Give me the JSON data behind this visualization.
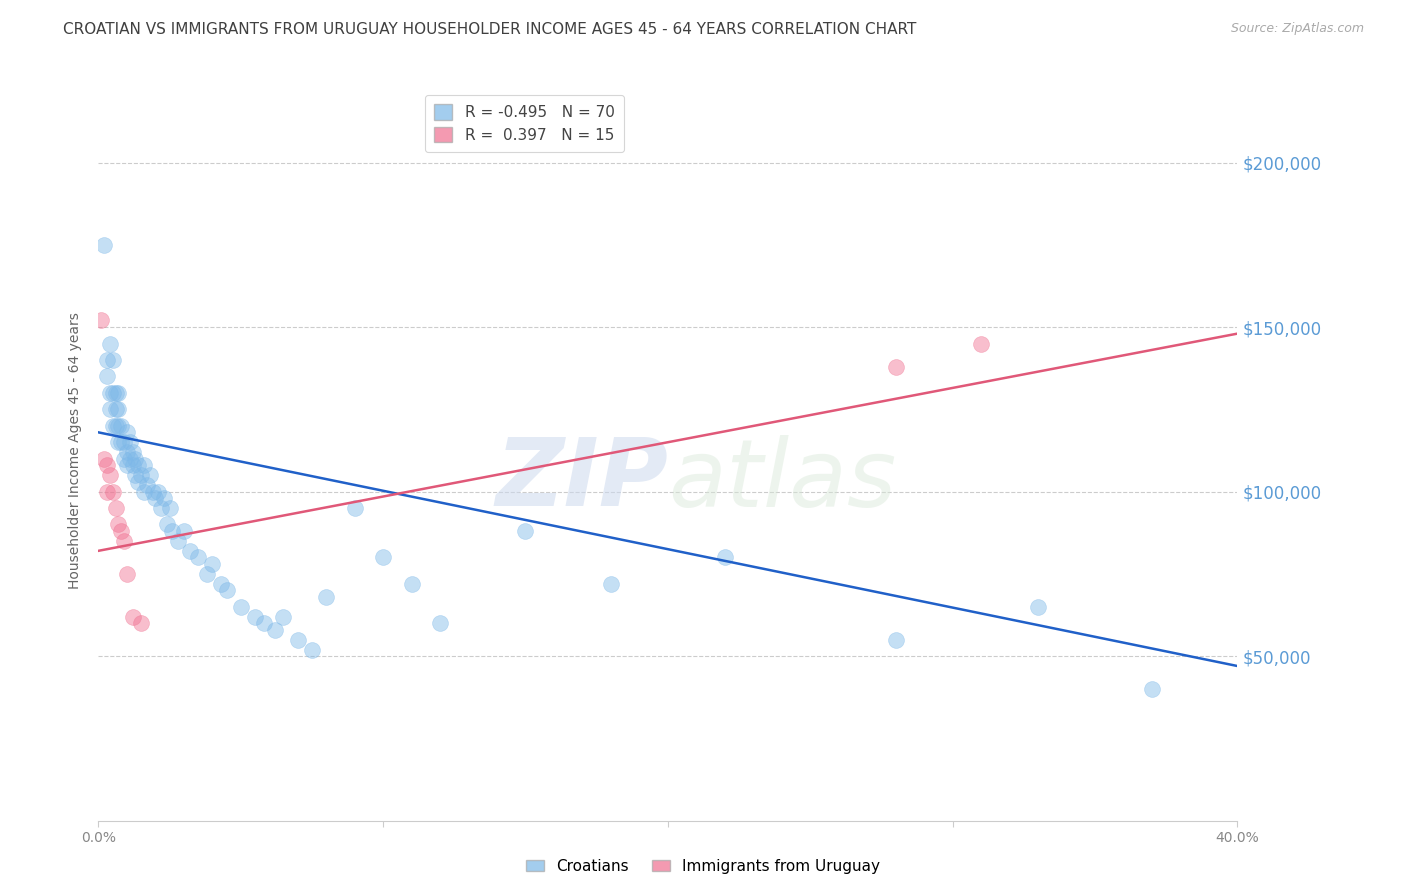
{
  "title": "CROATIAN VS IMMIGRANTS FROM URUGUAY HOUSEHOLDER INCOME AGES 45 - 64 YEARS CORRELATION CHART",
  "source": "Source: ZipAtlas.com",
  "ylabel": "Householder Income Ages 45 - 64 years",
  "ytick_labels": [
    "$50,000",
    "$100,000",
    "$150,000",
    "$200,000"
  ],
  "ytick_values": [
    50000,
    100000,
    150000,
    200000
  ],
  "watermark": "ZIPatlas",
  "croatians_x": [
    0.002,
    0.003,
    0.003,
    0.004,
    0.004,
    0.004,
    0.005,
    0.005,
    0.005,
    0.006,
    0.006,
    0.006,
    0.007,
    0.007,
    0.007,
    0.007,
    0.008,
    0.008,
    0.009,
    0.009,
    0.01,
    0.01,
    0.01,
    0.011,
    0.011,
    0.012,
    0.012,
    0.013,
    0.013,
    0.014,
    0.014,
    0.015,
    0.016,
    0.016,
    0.017,
    0.018,
    0.019,
    0.02,
    0.021,
    0.022,
    0.023,
    0.024,
    0.025,
    0.026,
    0.028,
    0.03,
    0.032,
    0.035,
    0.038,
    0.04,
    0.043,
    0.045,
    0.05,
    0.055,
    0.058,
    0.062,
    0.065,
    0.07,
    0.075,
    0.08,
    0.09,
    0.1,
    0.11,
    0.12,
    0.15,
    0.18,
    0.22,
    0.28,
    0.33,
    0.37
  ],
  "croatians_y": [
    175000,
    140000,
    135000,
    130000,
    145000,
    125000,
    130000,
    120000,
    140000,
    125000,
    120000,
    130000,
    120000,
    115000,
    125000,
    130000,
    115000,
    120000,
    110000,
    115000,
    112000,
    108000,
    118000,
    110000,
    115000,
    108000,
    112000,
    105000,
    110000,
    103000,
    108000,
    105000,
    100000,
    108000,
    102000,
    105000,
    100000,
    98000,
    100000,
    95000,
    98000,
    90000,
    95000,
    88000,
    85000,
    88000,
    82000,
    80000,
    75000,
    78000,
    72000,
    70000,
    65000,
    62000,
    60000,
    58000,
    62000,
    55000,
    52000,
    68000,
    95000,
    80000,
    72000,
    60000,
    88000,
    72000,
    80000,
    55000,
    65000,
    40000
  ],
  "uruguay_x": [
    0.001,
    0.002,
    0.003,
    0.003,
    0.004,
    0.005,
    0.006,
    0.007,
    0.008,
    0.009,
    0.01,
    0.012,
    0.015,
    0.28,
    0.31
  ],
  "uruguay_y": [
    152000,
    110000,
    108000,
    100000,
    105000,
    100000,
    95000,
    90000,
    88000,
    85000,
    75000,
    62000,
    60000,
    138000,
    145000
  ],
  "croatians_trend_x": [
    0.0,
    0.4
  ],
  "croatians_trend_y": [
    118000,
    47000
  ],
  "uruguay_trend_x": [
    0.0,
    0.4
  ],
  "uruguay_trend_y": [
    82000,
    148000
  ],
  "xlim": [
    0.0,
    0.4
  ],
  "ylim": [
    0,
    225000
  ],
  "blue_color": "#7db8e8",
  "pink_color": "#f07090",
  "trend_blue": "#2060c8",
  "trend_pink": "#e05878",
  "grid_color": "#cccccc",
  "title_color": "#404040",
  "yaxis_color": "#5b9bd5",
  "title_fontsize": 11,
  "axis_label_fontsize": 10
}
